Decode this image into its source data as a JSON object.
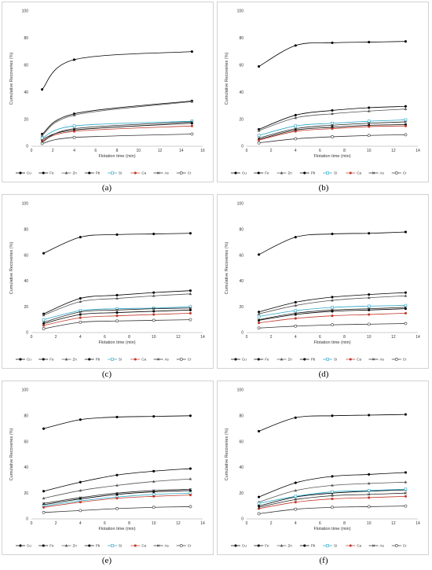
{
  "legend_entries": [
    "Cu",
    "Fe",
    "Zn",
    "Pb",
    "Si",
    "Ca",
    "As",
    "Cr"
  ],
  "series_styles": [
    {
      "color": "#000000",
      "marker": "filled-circle"
    },
    {
      "color": "#000000",
      "marker": "filled-circle"
    },
    {
      "color": "#555555",
      "marker": "triangle"
    },
    {
      "color": "#000000",
      "marker": "filled-circle"
    },
    {
      "color": "#2aa7c7",
      "marker": "square"
    },
    {
      "color": "#c0392b",
      "marker": "filled-circle"
    },
    {
      "color": "#222222",
      "marker": "x-mark"
    },
    {
      "color": "#333333",
      "marker": "open-circle"
    }
  ],
  "chart_data": [
    {
      "type": "line",
      "caption": "(a)",
      "xlabel": "Flotation time (min)",
      "ylabel": "Cumulative Recoveries (%)",
      "xlim": [
        0,
        16
      ],
      "xticks": [
        0,
        2,
        4,
        6,
        8,
        10,
        12,
        14,
        16
      ],
      "ylim": [
        0,
        100
      ],
      "yticks": [
        0,
        20,
        40,
        60,
        80,
        100
      ],
      "x": [
        1,
        4,
        15
      ],
      "series": [
        {
          "name": "Cu",
          "values": [
            42,
            64,
            70
          ]
        },
        {
          "name": "Fe",
          "values": [
            9,
            24,
            33.5
          ]
        },
        {
          "name": "Zn",
          "values": [
            8,
            23,
            33
          ]
        },
        {
          "name": "Pb",
          "values": [
            5,
            12,
            17
          ]
        },
        {
          "name": "Si",
          "values": [
            6,
            15,
            18.5
          ]
        },
        {
          "name": "Ca",
          "values": [
            4,
            11,
            15
          ]
        },
        {
          "name": "As",
          "values": [
            3,
            13,
            18
          ]
        },
        {
          "name": "Cr",
          "values": [
            2,
            6.5,
            9
          ]
        }
      ]
    },
    {
      "type": "line",
      "caption": "(b)",
      "xlabel": "Flotation time (min)",
      "ylabel": "Cumulative Recoveries (%)",
      "xlim": [
        0,
        14
      ],
      "xticks": [
        0,
        2,
        4,
        6,
        8,
        10,
        12,
        14
      ],
      "ylim": [
        0,
        100
      ],
      "yticks": [
        0,
        20,
        40,
        60,
        80,
        100
      ],
      "x": [
        1,
        4,
        7,
        10,
        13
      ],
      "series": [
        {
          "name": "Cu",
          "values": [
            59,
            74.5,
            76.5,
            77,
            77.5
          ]
        },
        {
          "name": "Fe",
          "values": [
            12.5,
            23,
            26.5,
            28.5,
            29.5
          ]
        },
        {
          "name": "Zn",
          "values": [
            11.5,
            21,
            24,
            26,
            27.5
          ]
        },
        {
          "name": "Pb",
          "values": [
            5,
            12,
            14,
            15.5,
            16
          ]
        },
        {
          "name": "Si",
          "values": [
            8,
            15,
            17,
            18.5,
            19.5
          ]
        },
        {
          "name": "Ca",
          "values": [
            4.5,
            11,
            13,
            14.5,
            15
          ]
        },
        {
          "name": "As",
          "values": [
            6,
            13,
            15.5,
            17,
            18
          ]
        },
        {
          "name": "Cr",
          "values": [
            2.5,
            5.5,
            7,
            8,
            8.5
          ]
        }
      ]
    },
    {
      "type": "line",
      "caption": "(c)",
      "xlabel": "Flotation time (min)",
      "ylabel": "Cumulative Recoveries (%)",
      "xlim": [
        0,
        14
      ],
      "xticks": [
        0,
        2,
        4,
        6,
        8,
        10,
        12,
        14
      ],
      "ylim": [
        0,
        100
      ],
      "yticks": [
        0,
        20,
        40,
        60,
        80,
        100
      ],
      "x": [
        1,
        4,
        7,
        10,
        13
      ],
      "series": [
        {
          "name": "Cu",
          "values": [
            61.5,
            74,
            76,
            76.5,
            77
          ]
        },
        {
          "name": "Fe",
          "values": [
            14.5,
            26.5,
            29,
            31,
            32.5
          ]
        },
        {
          "name": "Zn",
          "values": [
            13.5,
            24,
            26.5,
            28.5,
            30
          ]
        },
        {
          "name": "Pb",
          "values": [
            7,
            14,
            15.5,
            16.5,
            17.5
          ]
        },
        {
          "name": "Si",
          "values": [
            10,
            17,
            18.5,
            19,
            20
          ]
        },
        {
          "name": "Ca",
          "values": [
            5.5,
            11.5,
            13,
            14,
            15
          ]
        },
        {
          "name": "As",
          "values": [
            8,
            16,
            17.5,
            18.5,
            19
          ]
        },
        {
          "name": "Cr",
          "values": [
            3,
            8,
            9,
            9.5,
            10
          ]
        }
      ]
    },
    {
      "type": "line",
      "caption": "(d)",
      "xlabel": "Flotation time (min)",
      "ylabel": "Cumulative Recoveries (%)",
      "xlim": [
        0,
        14
      ],
      "xticks": [
        0,
        2,
        4,
        6,
        8,
        10,
        12,
        14
      ],
      "ylim": [
        0,
        100
      ],
      "yticks": [
        0,
        20,
        40,
        60,
        80,
        100
      ],
      "x": [
        1,
        4,
        7,
        10,
        13
      ],
      "series": [
        {
          "name": "Cu",
          "values": [
            60.5,
            74,
            76.5,
            77,
            78
          ]
        },
        {
          "name": "Fe",
          "values": [
            16,
            23.5,
            27.5,
            29.5,
            31
          ]
        },
        {
          "name": "Zn",
          "values": [
            14.5,
            21,
            25,
            27,
            28.5
          ]
        },
        {
          "name": "Pb",
          "values": [
            9.5,
            14,
            16.5,
            17.5,
            18.5
          ]
        },
        {
          "name": "Si",
          "values": [
            12.5,
            17,
            19.5,
            20.5,
            21
          ]
        },
        {
          "name": "Ca",
          "values": [
            7.5,
            11,
            13,
            14,
            15
          ]
        },
        {
          "name": "As",
          "values": [
            10,
            15,
            17.5,
            18.5,
            19.5
          ]
        },
        {
          "name": "Cr",
          "values": [
            3.5,
            5,
            6,
            6.5,
            7
          ]
        }
      ]
    },
    {
      "type": "line",
      "caption": "(e)",
      "xlabel": "Flotation time (min)",
      "ylabel": "Cumulative Recoveries (%)",
      "xlim": [
        0,
        14
      ],
      "xticks": [
        0,
        2,
        4,
        6,
        8,
        10,
        12,
        14
      ],
      "ylim": [
        0,
        100
      ],
      "yticks": [
        0,
        20,
        40,
        60,
        80,
        100
      ],
      "x": [
        1,
        4,
        7,
        10,
        13
      ],
      "series": [
        {
          "name": "Cu",
          "values": [
            70,
            77,
            79,
            79.5,
            80
          ]
        },
        {
          "name": "Fe",
          "values": [
            21.5,
            28.5,
            34,
            37,
            39
          ]
        },
        {
          "name": "Zn",
          "values": [
            16,
            22,
            26,
            29,
            31
          ]
        },
        {
          "name": "Pb",
          "values": [
            11,
            15.5,
            19,
            21,
            22
          ]
        },
        {
          "name": "Si",
          "values": [
            10,
            14,
            17,
            19,
            20
          ]
        },
        {
          "name": "Ca",
          "values": [
            9,
            13,
            16,
            17.5,
            18.5
          ]
        },
        {
          "name": "As",
          "values": [
            12,
            16.5,
            20,
            22,
            23
          ]
        },
        {
          "name": "Cr",
          "values": [
            5,
            6.5,
            8,
            9,
            9.5
          ]
        }
      ]
    },
    {
      "type": "line",
      "caption": "(f)",
      "xlabel": "Flotation time (min)",
      "ylabel": "Cumulative Recoveries (%)",
      "xlim": [
        0,
        14
      ],
      "xticks": [
        0,
        2,
        4,
        6,
        8,
        10,
        12,
        14
      ],
      "ylim": [
        0,
        100
      ],
      "yticks": [
        0,
        20,
        40,
        60,
        80,
        100
      ],
      "x": [
        1,
        4,
        7,
        10,
        13
      ],
      "series": [
        {
          "name": "Cu",
          "values": [
            68,
            78.5,
            80,
            80.5,
            81
          ]
        },
        {
          "name": "Fe",
          "values": [
            17,
            28,
            33,
            34.5,
            36
          ]
        },
        {
          "name": "Zn",
          "values": [
            13,
            22,
            26,
            27.5,
            28.5
          ]
        },
        {
          "name": "Pb",
          "values": [
            10,
            17,
            20,
            21.5,
            22.5
          ]
        },
        {
          "name": "Si",
          "values": [
            12,
            17.5,
            21,
            22,
            23
          ]
        },
        {
          "name": "Ca",
          "values": [
            8,
            13,
            15.5,
            16.5,
            17.5
          ]
        },
        {
          "name": "As",
          "values": [
            9,
            15,
            18,
            19,
            20
          ]
        },
        {
          "name": "Cr",
          "values": [
            4,
            7.5,
            9,
            9.5,
            10
          ]
        }
      ]
    }
  ]
}
